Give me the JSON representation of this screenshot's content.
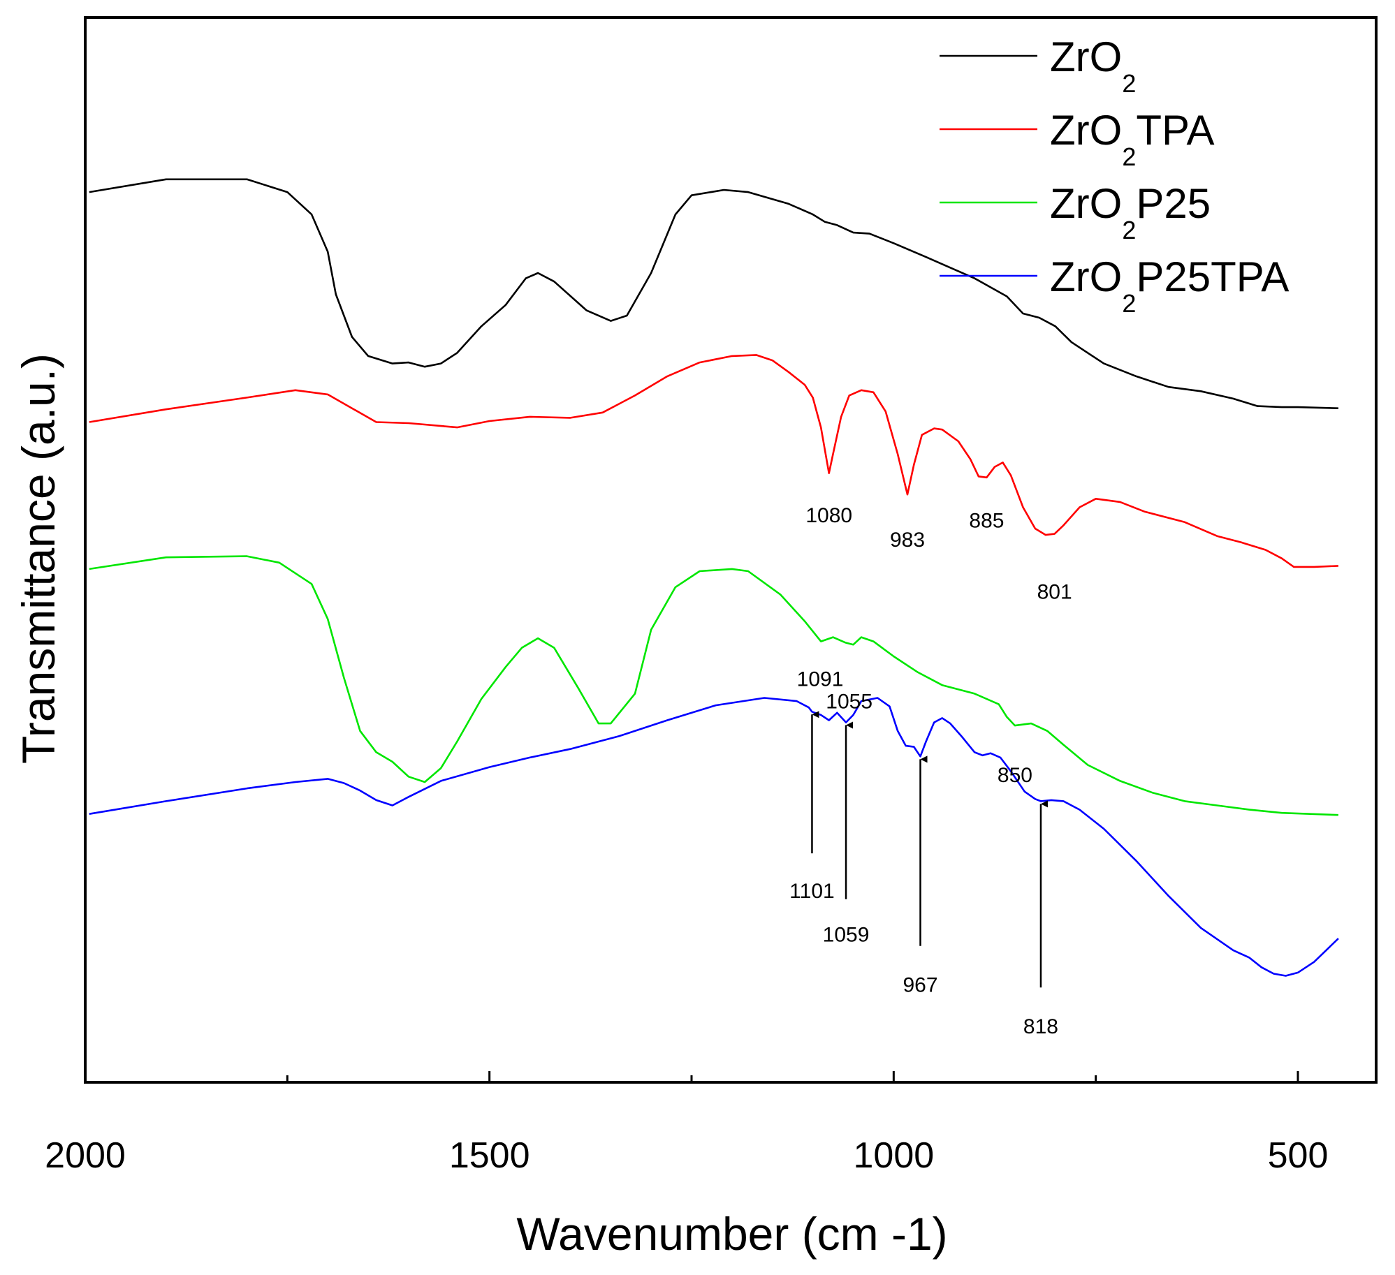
{
  "chart_data": {
    "type": "line",
    "title": "",
    "xlabel": "Wavenumber (cm -1)",
    "ylabel": "Transmittance (a.u.)",
    "xlim": [
      2000,
      450
    ],
    "ylim": [
      0,
      100
    ],
    "x_ticks": [
      2000,
      1500,
      1000,
      500
    ],
    "x_tick_labels": [
      "2000",
      "1500",
      "1000",
      "500"
    ],
    "y_ticks_shown": false,
    "grid": false,
    "legend_position": "top-right",
    "series": [
      {
        "name": "ZrO2",
        "label_base": "ZrO",
        "label_sub": "2",
        "label_suffix": "",
        "color": "#000000",
        "points": [
          [
            1995,
            83.6
          ],
          [
            1900,
            84.8
          ],
          [
            1800,
            84.8
          ],
          [
            1750,
            83.6
          ],
          [
            1720,
            81.5
          ],
          [
            1700,
            78
          ],
          [
            1690,
            74
          ],
          [
            1670,
            70
          ],
          [
            1650,
            68.2
          ],
          [
            1620,
            67.5
          ],
          [
            1600,
            67.6
          ],
          [
            1580,
            67.2
          ],
          [
            1560,
            67.5
          ],
          [
            1540,
            68.5
          ],
          [
            1510,
            71
          ],
          [
            1480,
            73
          ],
          [
            1455,
            75.5
          ],
          [
            1440,
            76
          ],
          [
            1420,
            75.2
          ],
          [
            1380,
            72.5
          ],
          [
            1350,
            71.5
          ],
          [
            1330,
            72
          ],
          [
            1300,
            76
          ],
          [
            1270,
            81.5
          ],
          [
            1250,
            83.3
          ],
          [
            1210,
            83.8
          ],
          [
            1180,
            83.6
          ],
          [
            1130,
            82.5
          ],
          [
            1100,
            81.5
          ],
          [
            1085,
            80.8
          ],
          [
            1070,
            80.5
          ],
          [
            1050,
            79.8
          ],
          [
            1030,
            79.7
          ],
          [
            1000,
            78.8
          ],
          [
            960,
            77.5
          ],
          [
            900,
            75.5
          ],
          [
            860,
            73.8
          ],
          [
            840,
            72.2
          ],
          [
            820,
            71.8
          ],
          [
            800,
            71
          ],
          [
            780,
            69.5
          ],
          [
            740,
            67.5
          ],
          [
            700,
            66.3
          ],
          [
            660,
            65.3
          ],
          [
            620,
            64.9
          ],
          [
            580,
            64.2
          ],
          [
            550,
            63.5
          ],
          [
            520,
            63.4
          ],
          [
            500,
            63.4
          ],
          [
            450,
            63.3
          ]
        ]
      },
      {
        "name": "ZrO2TPA",
        "label_base": "ZrO",
        "label_sub": "2",
        "label_suffix": "TPA",
        "color": "#ff0000",
        "points": [
          [
            1995,
            62
          ],
          [
            1900,
            63.2
          ],
          [
            1800,
            64.3
          ],
          [
            1740,
            65
          ],
          [
            1700,
            64.6
          ],
          [
            1670,
            63.3
          ],
          [
            1640,
            62
          ],
          [
            1600,
            61.9
          ],
          [
            1540,
            61.5
          ],
          [
            1500,
            62.1
          ],
          [
            1450,
            62.5
          ],
          [
            1400,
            62.4
          ],
          [
            1360,
            62.9
          ],
          [
            1320,
            64.5
          ],
          [
            1280,
            66.3
          ],
          [
            1240,
            67.6
          ],
          [
            1200,
            68.2
          ],
          [
            1170,
            68.3
          ],
          [
            1150,
            67.8
          ],
          [
            1130,
            66.7
          ],
          [
            1110,
            65.5
          ],
          [
            1100,
            64.3
          ],
          [
            1090,
            61.5
          ],
          [
            1080,
            57.2
          ],
          [
            1075,
            59
          ],
          [
            1065,
            62.5
          ],
          [
            1055,
            64.5
          ],
          [
            1040,
            65
          ],
          [
            1025,
            64.8
          ],
          [
            1010,
            63
          ],
          [
            995,
            59
          ],
          [
            983,
            55.2
          ],
          [
            975,
            58
          ],
          [
            965,
            60.8
          ],
          [
            950,
            61.4
          ],
          [
            940,
            61.3
          ],
          [
            920,
            60.2
          ],
          [
            905,
            58.5
          ],
          [
            895,
            56.9
          ],
          [
            885,
            56.8
          ],
          [
            875,
            57.8
          ],
          [
            865,
            58.2
          ],
          [
            855,
            57
          ],
          [
            840,
            54
          ],
          [
            825,
            52
          ],
          [
            812,
            51.4
          ],
          [
            801,
            51.5
          ],
          [
            790,
            52.3
          ],
          [
            770,
            54
          ],
          [
            750,
            54.8
          ],
          [
            720,
            54.5
          ],
          [
            690,
            53.6
          ],
          [
            640,
            52.6
          ],
          [
            600,
            51.3
          ],
          [
            570,
            50.7
          ],
          [
            540,
            50
          ],
          [
            520,
            49.2
          ],
          [
            505,
            48.4
          ],
          [
            480,
            48.4
          ],
          [
            450,
            48.5
          ]
        ]
      },
      {
        "name": "ZrO2P25",
        "label_base": "ZrO",
        "label_sub": "2",
        "label_suffix": "P25",
        "color": "#00e600",
        "points": [
          [
            1995,
            48.2
          ],
          [
            1900,
            49.3
          ],
          [
            1800,
            49.4
          ],
          [
            1760,
            48.8
          ],
          [
            1720,
            46.8
          ],
          [
            1700,
            43.5
          ],
          [
            1680,
            38
          ],
          [
            1660,
            33
          ],
          [
            1640,
            31
          ],
          [
            1620,
            30.1
          ],
          [
            1600,
            28.7
          ],
          [
            1580,
            28.2
          ],
          [
            1560,
            29.5
          ],
          [
            1540,
            32
          ],
          [
            1510,
            36
          ],
          [
            1480,
            39
          ],
          [
            1460,
            40.8
          ],
          [
            1440,
            41.7
          ],
          [
            1420,
            40.8
          ],
          [
            1390,
            37
          ],
          [
            1365,
            33.7
          ],
          [
            1350,
            33.7
          ],
          [
            1320,
            36.5
          ],
          [
            1300,
            42.5
          ],
          [
            1270,
            46.5
          ],
          [
            1240,
            48
          ],
          [
            1200,
            48.2
          ],
          [
            1180,
            48
          ],
          [
            1140,
            45.8
          ],
          [
            1110,
            43.3
          ],
          [
            1090,
            41.4
          ],
          [
            1075,
            41.8
          ],
          [
            1060,
            41.3
          ],
          [
            1050,
            41.1
          ],
          [
            1040,
            41.8
          ],
          [
            1025,
            41.4
          ],
          [
            1000,
            40
          ],
          [
            970,
            38.5
          ],
          [
            940,
            37.3
          ],
          [
            900,
            36.5
          ],
          [
            870,
            35.5
          ],
          [
            860,
            34.3
          ],
          [
            850,
            33.5
          ],
          [
            830,
            33.7
          ],
          [
            810,
            33
          ],
          [
            790,
            31.7
          ],
          [
            760,
            29.8
          ],
          [
            720,
            28.3
          ],
          [
            680,
            27.2
          ],
          [
            640,
            26.4
          ],
          [
            600,
            26
          ],
          [
            560,
            25.6
          ],
          [
            520,
            25.3
          ],
          [
            450,
            25.1
          ]
        ]
      },
      {
        "name": "ZrO2P25TPA",
        "label_base": "ZrO",
        "label_sub": "2",
        "label_suffix": "P25TPA",
        "color": "#0000ff",
        "points": [
          [
            1995,
            25.2
          ],
          [
            1900,
            26.4
          ],
          [
            1800,
            27.6
          ],
          [
            1740,
            28.2
          ],
          [
            1700,
            28.5
          ],
          [
            1680,
            28.1
          ],
          [
            1660,
            27.4
          ],
          [
            1640,
            26.5
          ],
          [
            1620,
            26
          ],
          [
            1600,
            26.8
          ],
          [
            1560,
            28.3
          ],
          [
            1500,
            29.6
          ],
          [
            1450,
            30.5
          ],
          [
            1400,
            31.3
          ],
          [
            1340,
            32.5
          ],
          [
            1280,
            34
          ],
          [
            1220,
            35.4
          ],
          [
            1160,
            36.1
          ],
          [
            1120,
            35.8
          ],
          [
            1105,
            35.2
          ],
          [
            1101,
            34.8
          ],
          [
            1090,
            34.5
          ],
          [
            1080,
            34
          ],
          [
            1070,
            34.7
          ],
          [
            1059,
            33.8
          ],
          [
            1050,
            34.5
          ],
          [
            1040,
            35.8
          ],
          [
            1020,
            36.1
          ],
          [
            1005,
            35.3
          ],
          [
            995,
            33
          ],
          [
            985,
            31.6
          ],
          [
            975,
            31.5
          ],
          [
            967,
            30.6
          ],
          [
            960,
            32
          ],
          [
            950,
            33.8
          ],
          [
            940,
            34.2
          ],
          [
            930,
            33.7
          ],
          [
            915,
            32.4
          ],
          [
            900,
            31
          ],
          [
            890,
            30.7
          ],
          [
            880,
            30.9
          ],
          [
            868,
            30.5
          ],
          [
            855,
            29.2
          ],
          [
            838,
            27.3
          ],
          [
            825,
            26.6
          ],
          [
            818,
            26.4
          ],
          [
            805,
            26.5
          ],
          [
            790,
            26.4
          ],
          [
            770,
            25.6
          ],
          [
            740,
            23.8
          ],
          [
            700,
            20.8
          ],
          [
            660,
            17.5
          ],
          [
            620,
            14.5
          ],
          [
            580,
            12.4
          ],
          [
            560,
            11.7
          ],
          [
            545,
            10.8
          ],
          [
            530,
            10.2
          ],
          [
            515,
            10
          ],
          [
            500,
            10.3
          ],
          [
            480,
            11.3
          ],
          [
            450,
            13.5
          ]
        ]
      }
    ],
    "annotations": [
      {
        "text": "1080",
        "series": "ZrO2TPA",
        "x": 1080,
        "y": 52.6,
        "arrow": false
      },
      {
        "text": "983",
        "series": "ZrO2TPA",
        "x": 983,
        "y": 50.3,
        "arrow": false
      },
      {
        "text": "885",
        "series": "ZrO2TPA",
        "x": 885,
        "y": 52.1,
        "arrow": false
      },
      {
        "text": "801",
        "series": "ZrO2TPA",
        "x": 801,
        "y": 45.4,
        "arrow": false
      },
      {
        "text": "1091",
        "series": "ZrO2P25",
        "x": 1091,
        "y": 37.2,
        "arrow": false
      },
      {
        "text": "1055",
        "series": "ZrO2P25",
        "x": 1055,
        "y": 35.1,
        "arrow": false
      },
      {
        "text": "850",
        "series": "ZrO2P25",
        "x": 850,
        "y": 28.2,
        "arrow": false
      },
      {
        "text": "1101",
        "series": "ZrO2P25TPA",
        "x": 1101,
        "y": 17.3,
        "arrow": true,
        "tail_y": 21.5
      },
      {
        "text": "1059",
        "series": "ZrO2P25TPA",
        "x": 1059,
        "y": 13.2,
        "arrow": true,
        "tail_y": 17.2
      },
      {
        "text": "967",
        "series": "ZrO2P25TPA",
        "x": 967,
        "y": 8.5,
        "arrow": true,
        "tail_y": 12.8
      },
      {
        "text": "818",
        "series": "ZrO2P25TPA",
        "x": 818,
        "y": 4.6,
        "arrow": true,
        "tail_y": 8.9
      }
    ]
  }
}
